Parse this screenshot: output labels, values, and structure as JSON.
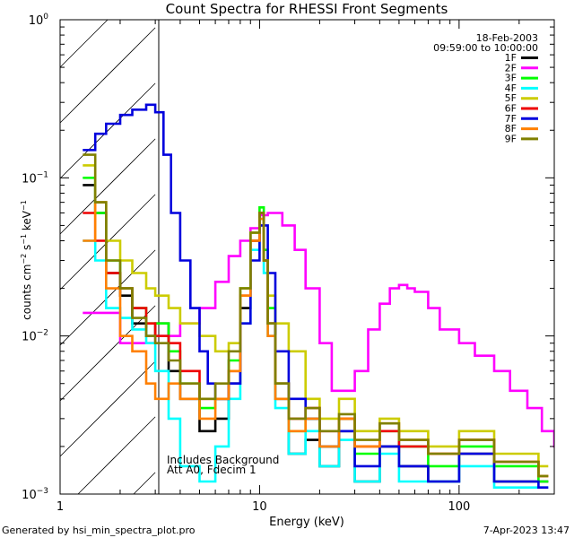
{
  "chart_data": {
    "type": "line",
    "title": "Count Spectra for RHESSI Front Segments",
    "xlabel": "Energy (keV)",
    "ylabel_base": "counts cm",
    "ylabel_exp1": "−2",
    "ylabel_mid": " s",
    "ylabel_exp2": "−1",
    "ylabel_end": " keV",
    "ylabel_exp3": "−1",
    "x_scale": "log",
    "y_scale": "log",
    "xlim": [
      1,
      300
    ],
    "ylim": [
      0.001,
      1.0
    ],
    "x_ticks": [
      {
        "value": 1,
        "label": "1"
      },
      {
        "value": 10,
        "label": "10"
      },
      {
        "value": 100,
        "label": "100"
      }
    ],
    "y_ticks": [
      {
        "value": 0.001,
        "base": "10",
        "exp": "−3"
      },
      {
        "value": 0.01,
        "base": "10",
        "exp": "−2"
      },
      {
        "value": 0.1,
        "base": "10",
        "exp": "−1"
      },
      {
        "value": 1.0,
        "base": "10",
        "exp": "0"
      }
    ],
    "hatched_region": [
      1,
      3
    ],
    "date": "18-Feb-2003",
    "time_range": "09:59:00 to 10:00:00",
    "annotation_line1": "Includes Background",
    "annotation_line2": "Att A0, Fdecim 1",
    "series": [
      {
        "name": "1F",
        "color": "#000000",
        "energies": [
          1.3,
          1.5,
          1.7,
          2.0,
          2.3,
          2.7,
          3.0,
          3.5,
          4.0,
          5.0,
          6.0,
          7.0,
          8.0,
          9.0,
          10.0,
          10.5,
          11.0,
          12.0,
          14.0,
          17.0,
          20.0,
          25.0,
          30.0,
          40.0,
          50.0,
          70.0,
          100.0,
          150.0,
          250.0
        ],
        "values": [
          0.09,
          0.06,
          0.025,
          0.018,
          0.012,
          0.01,
          0.012,
          0.006,
          0.004,
          0.0025,
          0.003,
          0.005,
          0.015,
          0.04,
          0.06,
          0.03,
          0.012,
          0.004,
          0.0018,
          0.0022,
          0.0015,
          0.0025,
          0.0012,
          0.002,
          0.0015,
          0.0012,
          0.0018,
          0.0012,
          0.0012
        ]
      },
      {
        "name": "2F",
        "color": "#ff00ff",
        "energies": [
          1.3,
          2.0,
          3.0,
          4.0,
          5.0,
          6.0,
          7.0,
          8.0,
          9.0,
          10.0,
          11.0,
          13.0,
          15.0,
          17.0,
          20.0,
          23.0,
          26.0,
          30.0,
          35.0,
          40.0,
          45.0,
          50.0,
          55.0,
          60.0,
          70.0,
          80.0,
          100.0,
          120.0,
          150.0,
          180.0,
          220.0,
          260.0,
          300.0
        ],
        "values": [
          0.014,
          0.009,
          0.01,
          0.012,
          0.015,
          0.022,
          0.032,
          0.04,
          0.048,
          0.058,
          0.06,
          0.05,
          0.035,
          0.02,
          0.009,
          0.0045,
          0.0045,
          0.006,
          0.011,
          0.016,
          0.02,
          0.021,
          0.02,
          0.019,
          0.015,
          0.011,
          0.009,
          0.0075,
          0.006,
          0.0045,
          0.0035,
          0.0025,
          0.002
        ]
      },
      {
        "name": "3F",
        "color": "#00ff00",
        "energies": [
          1.3,
          1.5,
          1.7,
          2.0,
          2.3,
          2.7,
          3.0,
          3.5,
          4.0,
          5.0,
          6.0,
          7.0,
          8.0,
          9.0,
          10.0,
          10.5,
          11.0,
          12.0,
          14.0,
          17.0,
          20.0,
          25.0,
          30.0,
          40.0,
          50.0,
          70.0,
          100.0,
          150.0,
          250.0
        ],
        "values": [
          0.1,
          0.06,
          0.03,
          0.02,
          0.015,
          0.012,
          0.012,
          0.008,
          0.005,
          0.0035,
          0.004,
          0.007,
          0.02,
          0.045,
          0.065,
          0.035,
          0.015,
          0.005,
          0.0025,
          0.003,
          0.002,
          0.003,
          0.0018,
          0.0025,
          0.002,
          0.0015,
          0.002,
          0.0015,
          0.0012
        ]
      },
      {
        "name": "4F",
        "color": "#00ffff",
        "energies": [
          1.3,
          1.5,
          1.7,
          2.0,
          2.3,
          2.7,
          3.0,
          3.5,
          4.0,
          5.0,
          6.0,
          7.0,
          8.0,
          9.0,
          10.0,
          10.5,
          11.0,
          12.0,
          14.0,
          17.0,
          20.0,
          25.0,
          30.0,
          40.0,
          50.0,
          70.0,
          100.0,
          150.0,
          250.0
        ],
        "values": [
          0.04,
          0.03,
          0.015,
          0.013,
          0.011,
          0.009,
          0.006,
          0.003,
          0.0015,
          0.0012,
          0.002,
          0.004,
          0.012,
          0.035,
          0.055,
          0.025,
          0.01,
          0.0035,
          0.0018,
          0.0025,
          0.0015,
          0.0022,
          0.0012,
          0.0018,
          0.0012,
          0.0012,
          0.0015,
          0.0011,
          0.0011
        ]
      },
      {
        "name": "5F",
        "color": "#cccc00",
        "energies": [
          1.3,
          1.5,
          1.7,
          2.0,
          2.3,
          2.7,
          3.0,
          3.5,
          4.0,
          5.0,
          6.0,
          7.0,
          8.0,
          9.0,
          10.0,
          10.5,
          11.0,
          12.0,
          14.0,
          17.0,
          20.0,
          25.0,
          30.0,
          40.0,
          50.0,
          70.0,
          100.0,
          150.0,
          250.0
        ],
        "values": [
          0.12,
          0.07,
          0.04,
          0.03,
          0.025,
          0.02,
          0.018,
          0.015,
          0.012,
          0.01,
          0.008,
          0.009,
          0.02,
          0.045,
          0.05,
          0.03,
          0.018,
          0.012,
          0.008,
          0.004,
          0.003,
          0.004,
          0.0025,
          0.003,
          0.0025,
          0.002,
          0.0025,
          0.0018,
          0.0015
        ]
      },
      {
        "name": "6F",
        "color": "#ee0000",
        "energies": [
          1.3,
          1.5,
          1.7,
          2.0,
          2.3,
          2.7,
          3.0,
          3.5,
          4.0,
          5.0,
          6.0,
          7.0,
          8.0,
          9.0,
          10.0,
          10.5,
          11.0,
          12.0,
          14.0,
          17.0,
          20.0,
          25.0,
          30.0,
          40.0,
          50.0,
          70.0,
          100.0,
          150.0,
          250.0
        ],
        "values": [
          0.06,
          0.04,
          0.025,
          0.02,
          0.015,
          0.012,
          0.01,
          0.009,
          0.006,
          0.004,
          0.004,
          0.006,
          0.018,
          0.04,
          0.06,
          0.03,
          0.012,
          0.005,
          0.003,
          0.0035,
          0.0025,
          0.003,
          0.002,
          0.0025,
          0.002,
          0.0018,
          0.0022,
          0.0016,
          0.0013
        ]
      },
      {
        "name": "7F",
        "color": "#0000dd",
        "energies": [
          1.3,
          1.5,
          1.7,
          2.0,
          2.3,
          2.7,
          3.0,
          3.3,
          3.6,
          4.0,
          4.5,
          5.0,
          5.5,
          6.0,
          7.0,
          8.0,
          9.0,
          10.0,
          11.0,
          12.0,
          14.0,
          17.0,
          20.0,
          25.0,
          30.0,
          40.0,
          50.0,
          70.0,
          100.0,
          150.0,
          250.0
        ],
        "values": [
          0.15,
          0.19,
          0.22,
          0.25,
          0.27,
          0.29,
          0.26,
          0.14,
          0.06,
          0.03,
          0.015,
          0.008,
          0.005,
          0.004,
          0.005,
          0.012,
          0.03,
          0.05,
          0.025,
          0.008,
          0.004,
          0.003,
          0.002,
          0.0025,
          0.0015,
          0.002,
          0.0015,
          0.0012,
          0.0018,
          0.0012,
          0.0011
        ]
      },
      {
        "name": "8F",
        "color": "#ff8000",
        "energies": [
          1.3,
          1.5,
          1.7,
          2.0,
          2.3,
          2.7,
          3.0,
          3.5,
          4.0,
          5.0,
          6.0,
          7.0,
          8.0,
          9.0,
          10.0,
          10.5,
          11.0,
          12.0,
          14.0,
          17.0,
          20.0,
          25.0,
          30.0,
          40.0,
          50.0,
          70.0,
          100.0,
          150.0,
          250.0
        ],
        "values": [
          0.04,
          0.07,
          0.02,
          0.01,
          0.008,
          0.005,
          0.004,
          0.005,
          0.004,
          0.003,
          0.004,
          0.006,
          0.018,
          0.04,
          0.055,
          0.03,
          0.01,
          0.004,
          0.0025,
          0.003,
          0.002,
          0.003,
          0.002,
          0.0028,
          0.0022,
          0.0018,
          0.0022,
          0.0016,
          0.0013
        ]
      },
      {
        "name": "9F",
        "color": "#808000",
        "energies": [
          1.3,
          1.5,
          1.7,
          2.0,
          2.3,
          2.7,
          3.0,
          3.5,
          4.0,
          5.0,
          6.0,
          7.0,
          8.0,
          9.0,
          10.0,
          10.5,
          11.0,
          12.0,
          14.0,
          17.0,
          20.0,
          25.0,
          30.0,
          40.0,
          50.0,
          70.0,
          100.0,
          150.0,
          250.0
        ],
        "values": [
          0.14,
          0.07,
          0.03,
          0.02,
          0.013,
          0.01,
          0.009,
          0.007,
          0.005,
          0.004,
          0.005,
          0.008,
          0.02,
          0.045,
          0.06,
          0.03,
          0.012,
          0.005,
          0.003,
          0.0035,
          0.0025,
          0.0032,
          0.0022,
          0.0028,
          0.0022,
          0.0018,
          0.0022,
          0.0016,
          0.0013
        ]
      }
    ]
  },
  "footer": {
    "generated_by": "Generated by hsi_min_spectra_plot.pro",
    "timestamp": "7-Apr-2023 13:47"
  }
}
